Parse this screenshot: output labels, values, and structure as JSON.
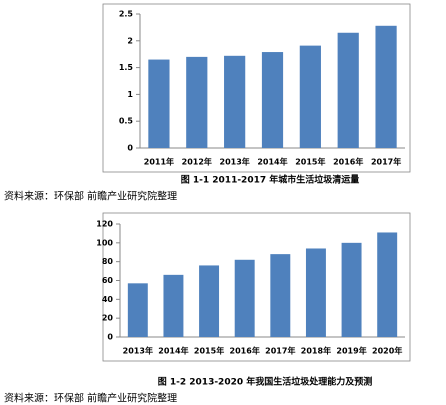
{
  "chart_data": [
    {
      "type": "bar",
      "title": "图 1-1 2011-2017 年城市生活垃圾清运量",
      "source": "资料来源：环保部 前瞻产业研究院整理",
      "categories": [
        "2011年",
        "2012年",
        "2013年",
        "2014年",
        "2015年",
        "2016年",
        "2017年"
      ],
      "values": [
        1.65,
        1.7,
        1.72,
        1.79,
        1.91,
        2.15,
        2.28
      ],
      "color": "#4f81bd",
      "ylim": [
        0,
        2.5
      ],
      "yticks": [
        0,
        0.5,
        1,
        1.5,
        2,
        2.5
      ],
      "grid": false
    },
    {
      "type": "bar",
      "title": "图 1-2 2013-2020 年我国生活垃圾处理能力及预测",
      "source": "资料来源：环保部 前瞻产业研究院整理",
      "categories": [
        "2013年",
        "2014年",
        "2015年",
        "2016年",
        "2017年",
        "2018年",
        "2019年",
        "2020年"
      ],
      "values": [
        57,
        66,
        76,
        82,
        88,
        94,
        100,
        111
      ],
      "color": "#4f81bd",
      "ylim": [
        0,
        120
      ],
      "yticks": [
        0,
        20,
        40,
        60,
        80,
        100,
        120
      ],
      "grid": false
    }
  ]
}
